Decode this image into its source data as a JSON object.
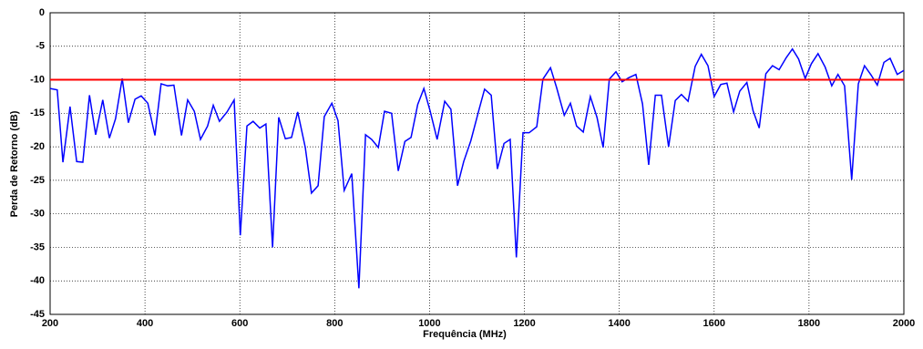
{
  "chart_data": {
    "type": "line",
    "xlabel": "Frequência (MHz)",
    "ylabel": "Perda de Retorno (dB)",
    "x": [
      200,
      215,
      227,
      242,
      256,
      269,
      283,
      296,
      311,
      325,
      338,
      352,
      365,
      379,
      392,
      406,
      421,
      434,
      448,
      461,
      477,
      490,
      504,
      517,
      532,
      544,
      557,
      573,
      588,
      601,
      615,
      628,
      642,
      655,
      669,
      682,
      696,
      709,
      722,
      738,
      751,
      765,
      778,
      794,
      807,
      820,
      836,
      851,
      865,
      878,
      892,
      905,
      920,
      934,
      948,
      961,
      975,
      988,
      1001,
      1016,
      1032,
      1045,
      1059,
      1072,
      1087,
      1103,
      1116,
      1130,
      1143,
      1157,
      1170,
      1183,
      1197,
      1210,
      1226,
      1239,
      1255,
      1268,
      1284,
      1297,
      1310,
      1324,
      1339,
      1353,
      1366,
      1379,
      1393,
      1406,
      1420,
      1435,
      1449,
      1462,
      1476,
      1489,
      1504,
      1518,
      1531,
      1545,
      1560,
      1573,
      1587,
      1600,
      1614,
      1627,
      1641,
      1654,
      1669,
      1682,
      1695,
      1709,
      1723,
      1737,
      1752,
      1765,
      1778,
      1792,
      1805,
      1819,
      1834,
      1848,
      1861,
      1875,
      1890,
      1904,
      1917,
      1931,
      1944,
      1958,
      1971,
      1986,
      2000
    ],
    "series": [
      {
        "color": "#0000ff",
        "values": [
          -11.3,
          -11.5,
          -22.3,
          -14,
          -22.2,
          -22.3,
          -12.3,
          -18.2,
          -13,
          -18.7,
          -15.8,
          -9.8,
          -16.4,
          -12.9,
          -12.4,
          -13.5,
          -18.3,
          -10.6,
          -10.9,
          -10.8,
          -18.3,
          -13,
          -14.7,
          -18.9,
          -16.9,
          -13.8,
          -16.2,
          -14.8,
          -13,
          -33.2,
          -16.9,
          -16.2,
          -17.2,
          -16.6,
          -35,
          -15.6,
          -18.8,
          -18.6,
          -14.8,
          -20.1,
          -26.9,
          -25.8,
          -15.5,
          -13.5,
          -16.1,
          -26.5,
          -24,
          -41.1,
          -18.2,
          -18.9,
          -20.1,
          -14.7,
          -15,
          -23.6,
          -19.2,
          -18.6,
          -13.7,
          -11.3,
          -14.6,
          -18.9,
          -13.2,
          -14.4,
          -25.8,
          -22.2,
          -19.1,
          -14.8,
          -11.4,
          -12.3,
          -23.3,
          -19.5,
          -18.9,
          -36.5,
          -17.9,
          -17.9,
          -17,
          -9.9,
          -8.2,
          -11.2,
          -15.3,
          -13.5,
          -16.9,
          -17.8,
          -12.5,
          -15.6,
          -20.1,
          -9.9,
          -8.8,
          -10.3,
          -9.7,
          -9.2,
          -13.6,
          -22.7,
          -12.3,
          -12.3,
          -20,
          -13.1,
          -12.2,
          -13.2,
          -8,
          -6.2,
          -7.9,
          -12.5,
          -10.7,
          -10.5,
          -14.8,
          -11.7,
          -10.4,
          -14.6,
          -17.2,
          -9.1,
          -7.9,
          -8.5,
          -6.7,
          -5.4,
          -6.9,
          -9.8,
          -7.6,
          -6.1,
          -8.1,
          -10.9,
          -9.2,
          -10.9,
          -24.9,
          -10.6,
          -7.9,
          -9.3,
          -10.8,
          -7.4,
          -6.8,
          -9.2,
          -8.6
        ]
      }
    ],
    "reference_line": {
      "value": -10,
      "color": "#ff0000"
    },
    "xlim": [
      200,
      2000
    ],
    "xticks": [
      200,
      400,
      600,
      800,
      1000,
      1200,
      1400,
      1600,
      1800,
      2000
    ],
    "ylim": [
      -45,
      0
    ],
    "yticks": [
      -45,
      -40,
      -35,
      -30,
      -25,
      -20,
      -15,
      -10,
      -5,
      0
    ],
    "grid": true
  }
}
